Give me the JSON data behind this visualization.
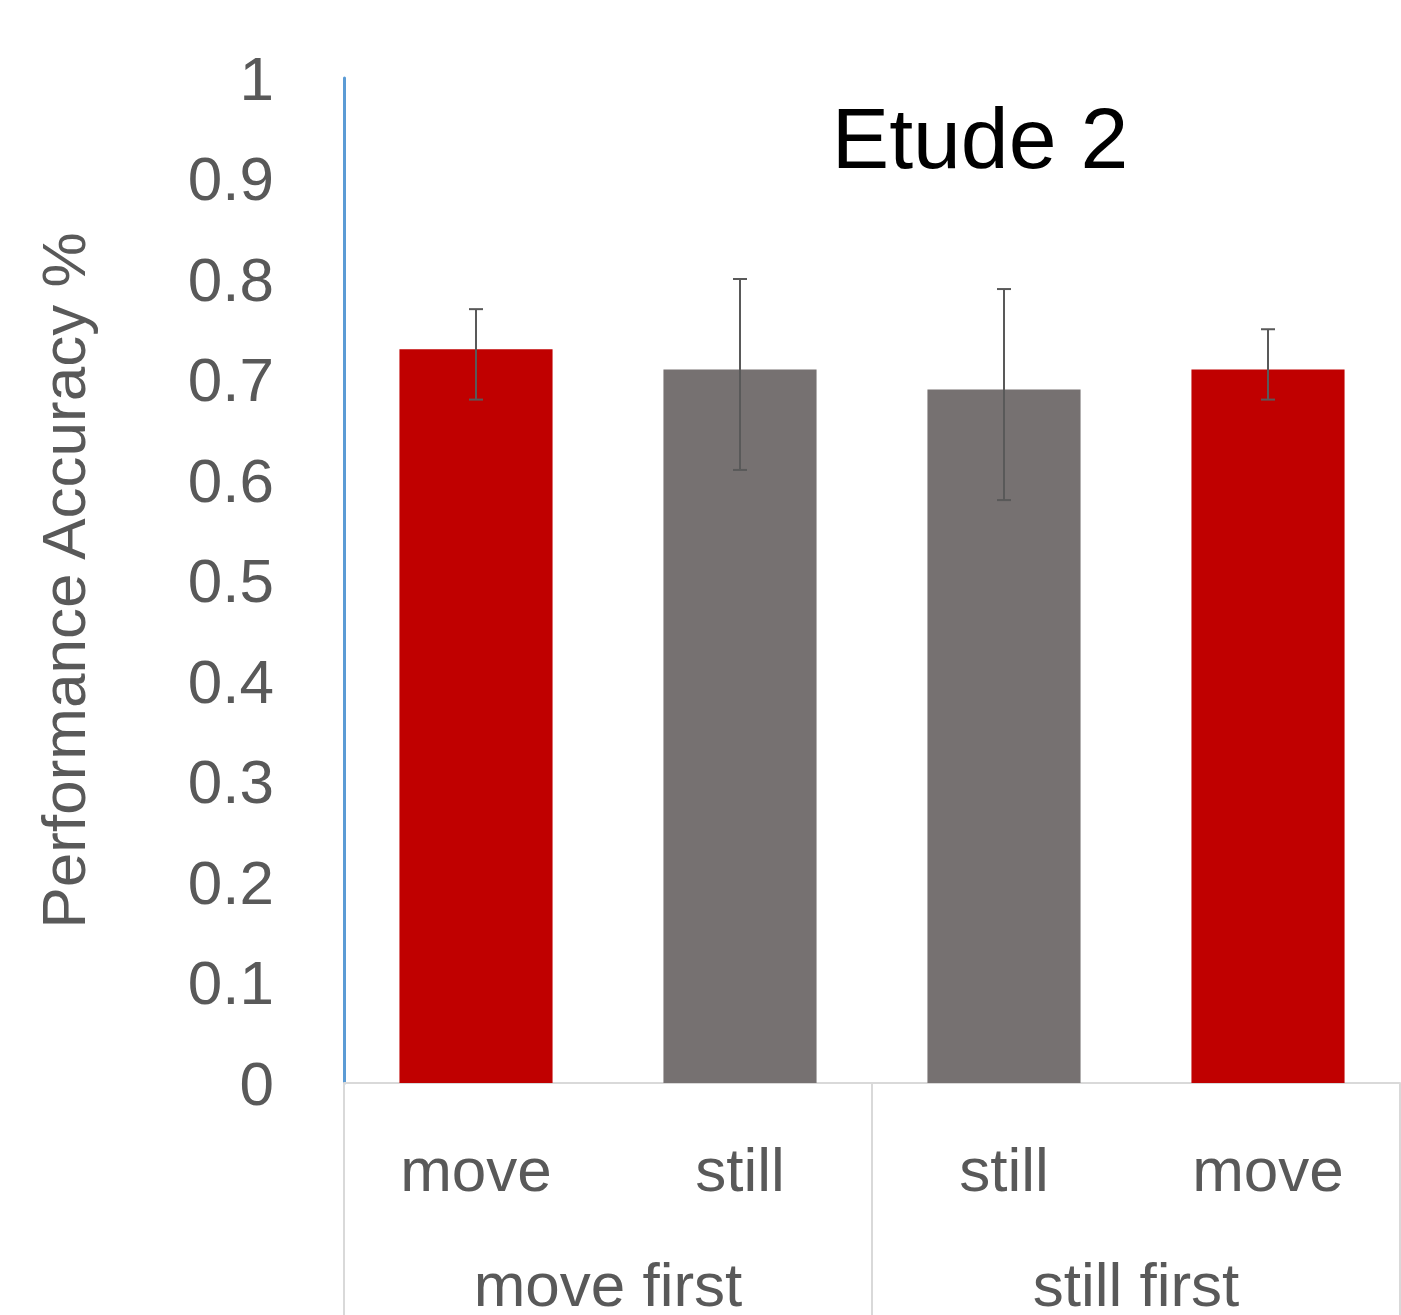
{
  "chart_data": {
    "type": "bar",
    "title": "Etude 2",
    "ylabel": "Performance Accuracy %",
    "categories": [
      "move",
      "still",
      "still",
      "move"
    ],
    "values": [
      0.73,
      0.71,
      0.69,
      0.71
    ],
    "colors": [
      "#c00000",
      "#767171",
      "#767171",
      "#c00000"
    ],
    "errors": [
      [
        0.68,
        0.77
      ],
      [
        0.61,
        0.8
      ],
      [
        0.58,
        0.79
      ],
      [
        0.68,
        0.75
      ]
    ],
    "annotations": [
      "move first",
      "still first"
    ],
    "ylim": [
      0,
      1
    ],
    "yticks": [
      0,
      0.1,
      0.2,
      0.3,
      0.4,
      0.5,
      0.6,
      0.7,
      0.8,
      0.9,
      1
    ],
    "grid": false
  }
}
